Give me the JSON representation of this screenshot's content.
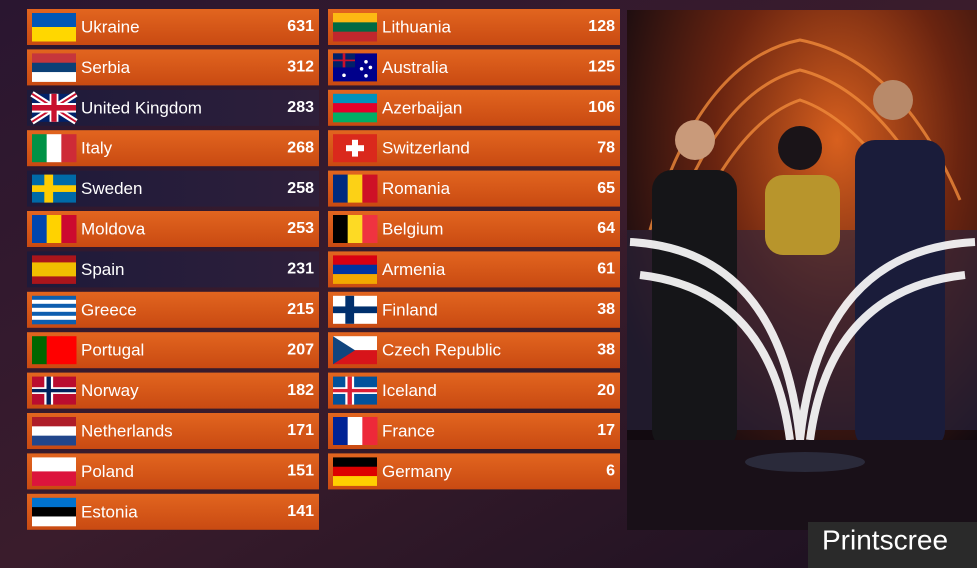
{
  "scoreboard": {
    "left": [
      {
        "country": "Ukraine",
        "points": "631"
      },
      {
        "country": "Serbia",
        "points": "312"
      },
      {
        "country": "United Kingdom",
        "points": "283"
      },
      {
        "country": "Italy",
        "points": "268"
      },
      {
        "country": "Sweden",
        "points": "258"
      },
      {
        "country": "Moldova",
        "points": "253"
      },
      {
        "country": "Spain",
        "points": "231"
      },
      {
        "country": "Greece",
        "points": "215"
      },
      {
        "country": "Portugal",
        "points": "207"
      },
      {
        "country": "Norway",
        "points": "182"
      },
      {
        "country": "Netherlands",
        "points": "171"
      },
      {
        "country": "Poland",
        "points": "151"
      },
      {
        "country": "Estonia",
        "points": "141"
      }
    ],
    "right": [
      {
        "country": "Lithuania",
        "points": "128"
      },
      {
        "country": "Australia",
        "points": "125"
      },
      {
        "country": "Azerbaijan",
        "points": "106"
      },
      {
        "country": "Switzerland",
        "points": "78"
      },
      {
        "country": "Romania",
        "points": "65"
      },
      {
        "country": "Belgium",
        "points": "64"
      },
      {
        "country": "Armenia",
        "points": "61"
      },
      {
        "country": "Finland",
        "points": "38"
      },
      {
        "country": "Czech Republic",
        "points": "38"
      },
      {
        "country": "Iceland",
        "points": "20"
      },
      {
        "country": "France",
        "points": "17"
      },
      {
        "country": "Germany",
        "points": "6"
      }
    ]
  },
  "watermark": "Printscree"
}
